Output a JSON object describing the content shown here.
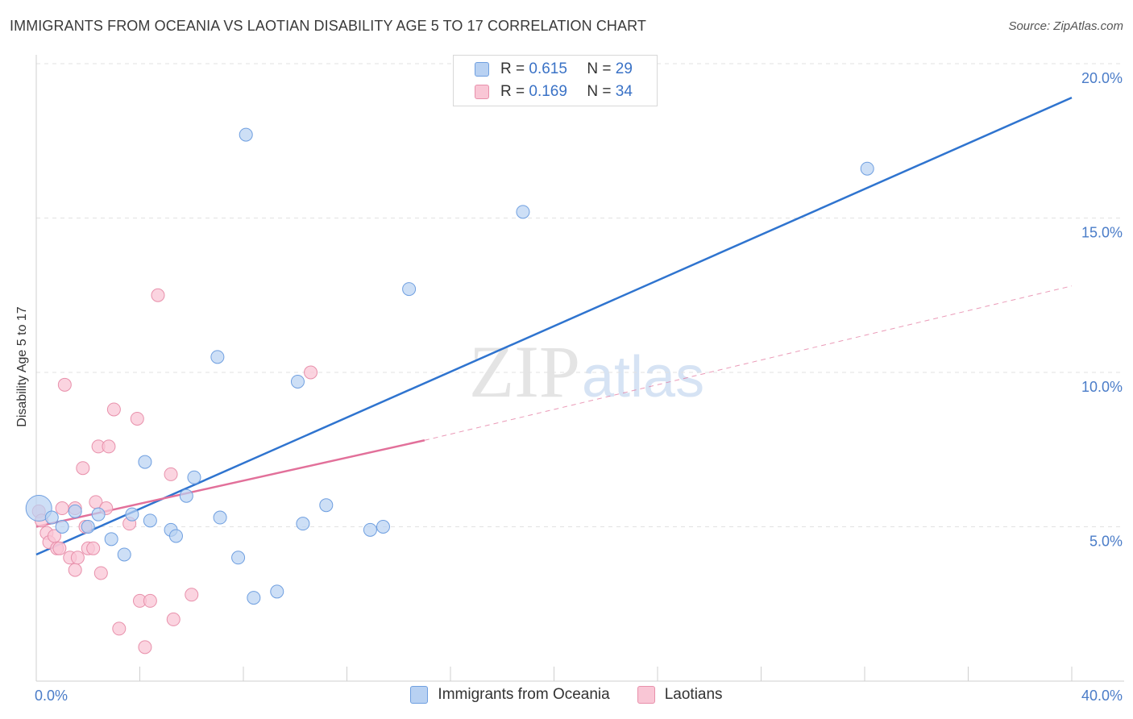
{
  "title": "IMMIGRANTS FROM OCEANIA VS LAOTIAN DISABILITY AGE 5 TO 17 CORRELATION CHART",
  "source": "Source: ZipAtlas.com",
  "watermark": {
    "zip": "ZIP",
    "atlas": "atlas"
  },
  "legend": {
    "blue": {
      "r_label": "R = ",
      "r_value": "0.615",
      "n_label": "N = ",
      "n_value": "29"
    },
    "pink": {
      "r_label": "R = ",
      "r_value": "0.169",
      "n_label": "N = ",
      "n_value": "34"
    }
  },
  "colors": {
    "blue_fill": "#b8d1f2",
    "blue_stroke": "#6f9fe0",
    "blue_line": "#2f74cf",
    "pink_fill": "#f9c6d5",
    "pink_stroke": "#e890ab",
    "pink_line": "#e2709a",
    "grid": "#e2e2e2",
    "tick_text": "#4a7cc8"
  },
  "chart_data": {
    "type": "scatter",
    "title": "IMMIGRANTS FROM OCEANIA VS LAOTIAN DISABILITY AGE 5 TO 17 CORRELATION CHART",
    "xlabel": "",
    "ylabel": "Disability Age 5 to 17",
    "xlim": [
      0,
      40
    ],
    "ylim": [
      0,
      20.5
    ],
    "x_tick_labels": [
      "0.0%",
      "40.0%"
    ],
    "y_ticks": [
      5,
      10,
      15,
      20
    ],
    "y_tick_labels": [
      "5.0%",
      "10.0%",
      "15.0%",
      "20.0%"
    ],
    "grid": true,
    "series": [
      {
        "name": "Immigrants from Oceania",
        "color": "blue",
        "r": 0.615,
        "n": 29,
        "points": [
          [
            0.1,
            5.6
          ],
          [
            0.6,
            5.3
          ],
          [
            1.0,
            5.0
          ],
          [
            1.5,
            5.5
          ],
          [
            2.0,
            5.0
          ],
          [
            2.4,
            5.4
          ],
          [
            2.9,
            4.6
          ],
          [
            3.4,
            4.1
          ],
          [
            3.7,
            5.4
          ],
          [
            4.2,
            7.1
          ],
          [
            4.4,
            5.2
          ],
          [
            5.2,
            4.9
          ],
          [
            5.4,
            4.7
          ],
          [
            5.8,
            6.0
          ],
          [
            6.1,
            6.6
          ],
          [
            7.0,
            10.5
          ],
          [
            7.1,
            5.3
          ],
          [
            7.8,
            4.0
          ],
          [
            8.1,
            17.7
          ],
          [
            8.4,
            2.7
          ],
          [
            9.3,
            2.9
          ],
          [
            10.1,
            9.7
          ],
          [
            10.3,
            5.1
          ],
          [
            11.2,
            5.7
          ],
          [
            14.4,
            12.7
          ],
          [
            12.9,
            4.9
          ],
          [
            13.4,
            5.0
          ],
          [
            18.8,
            15.2
          ],
          [
            32.1,
            16.6
          ]
        ],
        "trend": {
          "x": [
            0,
            40
          ],
          "y": [
            4.1,
            18.9
          ]
        }
      },
      {
        "name": "Laotians",
        "color": "pink",
        "r": 0.169,
        "n": 34,
        "points": [
          [
            0.1,
            5.5
          ],
          [
            0.2,
            5.2
          ],
          [
            0.4,
            4.8
          ],
          [
            0.5,
            4.5
          ],
          [
            0.7,
            4.7
          ],
          [
            0.8,
            4.3
          ],
          [
            0.9,
            4.3
          ],
          [
            1.0,
            5.6
          ],
          [
            1.1,
            9.6
          ],
          [
            1.3,
            4.0
          ],
          [
            1.5,
            3.6
          ],
          [
            1.5,
            5.6
          ],
          [
            1.6,
            4.0
          ],
          [
            1.8,
            6.9
          ],
          [
            1.9,
            5.0
          ],
          [
            2.0,
            4.3
          ],
          [
            2.2,
            4.3
          ],
          [
            2.3,
            5.8
          ],
          [
            2.4,
            7.6
          ],
          [
            2.5,
            3.5
          ],
          [
            2.7,
            5.6
          ],
          [
            2.8,
            7.6
          ],
          [
            3.0,
            8.8
          ],
          [
            3.2,
            1.7
          ],
          [
            3.6,
            5.1
          ],
          [
            3.9,
            8.5
          ],
          [
            4.0,
            2.6
          ],
          [
            4.2,
            1.1
          ],
          [
            4.4,
            2.6
          ],
          [
            4.7,
            12.5
          ],
          [
            5.2,
            6.7
          ],
          [
            5.3,
            2.0
          ],
          [
            6.0,
            2.8
          ],
          [
            10.6,
            10.0
          ]
        ],
        "trend_solid": {
          "x": [
            0,
            15
          ],
          "y": [
            5.0,
            7.8
          ]
        },
        "trend_dashed": {
          "x": [
            15,
            40
          ],
          "y": [
            7.8,
            12.8
          ]
        }
      }
    ]
  }
}
